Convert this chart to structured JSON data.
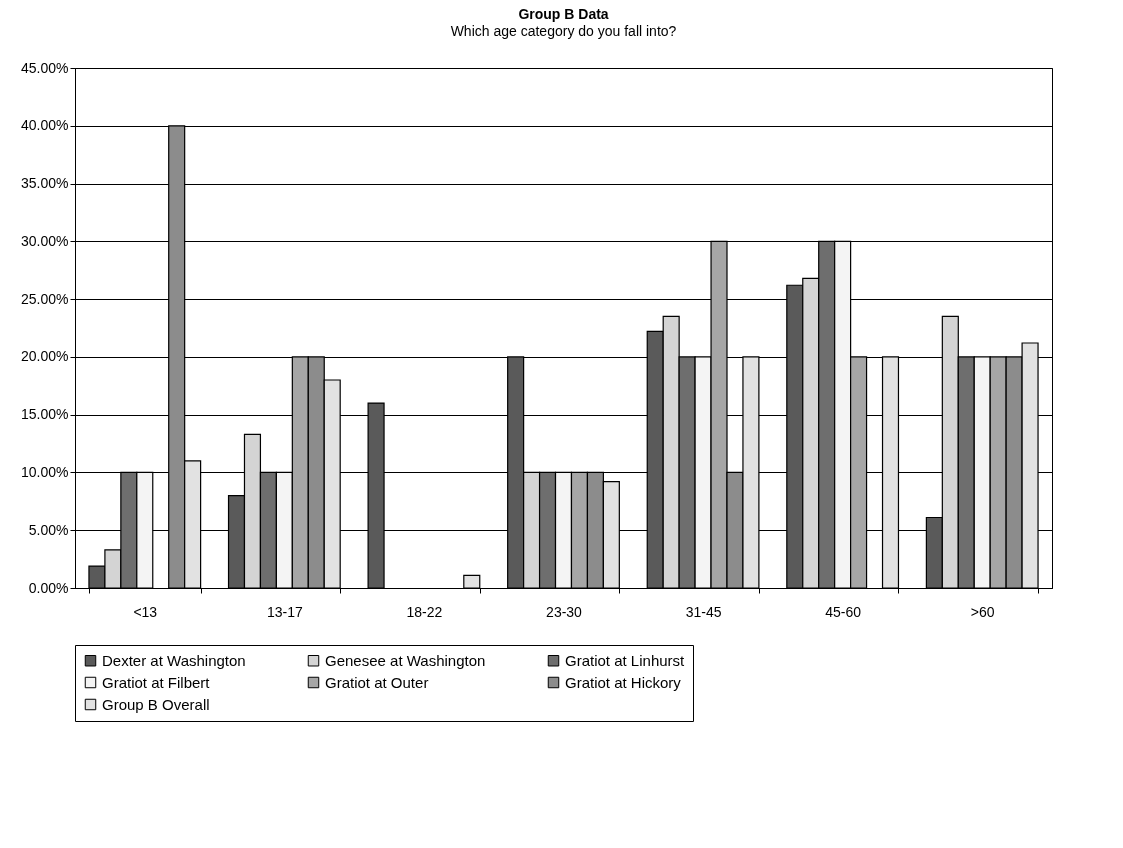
{
  "chart_data": {
    "type": "bar",
    "title": "Group B Data",
    "subtitle": "Which age category do you fall into?",
    "categories": [
      "<13",
      "13-17",
      "18-22",
      "23-30",
      "31-45",
      "45-60",
      ">60"
    ],
    "series": [
      {
        "name": "Dexter at Washington",
        "color": "#5a5a5a",
        "values": [
          1.9,
          8,
          16,
          20,
          22.2,
          26.2,
          6.1
        ]
      },
      {
        "name": "Genesee at Washington",
        "color": "#d4d4d4",
        "values": [
          3.3,
          13.3,
          0,
          10,
          23.5,
          26.8,
          23.5
        ]
      },
      {
        "name": "Gratiot at Linhurst",
        "color": "#6e6e6e",
        "values": [
          10,
          10,
          0,
          10,
          20,
          30,
          20
        ]
      },
      {
        "name": "Gratiot at Filbert",
        "color": "#f4f4f4",
        "values": [
          10,
          10,
          0,
          10,
          20,
          30,
          20
        ]
      },
      {
        "name": "Gratiot at Outer",
        "color": "#a6a6a6",
        "values": [
          0,
          20,
          0,
          10,
          30,
          20,
          20
        ]
      },
      {
        "name": "Gratiot at Hickory",
        "color": "#8c8c8c",
        "values": [
          40,
          20,
          0,
          10,
          10,
          0,
          20
        ]
      },
      {
        "name": "Group B Overall",
        "color": "#e2e2e2",
        "values": [
          11,
          18,
          1.1,
          9.2,
          20,
          20,
          21.2
        ]
      }
    ],
    "ylim": [
      0,
      45
    ],
    "yticks": [
      {
        "value": 0,
        "label": "0.00%"
      },
      {
        "value": 5,
        "label": "5.00%"
      },
      {
        "value": 10,
        "label": "10.00%"
      },
      {
        "value": 15,
        "label": "15.00%"
      },
      {
        "value": 20,
        "label": "20.00%"
      },
      {
        "value": 25,
        "label": "25.00%"
      },
      {
        "value": 30,
        "label": "30.00%"
      },
      {
        "value": 35,
        "label": "35.00%"
      },
      {
        "value": 40,
        "label": "40.00%"
      },
      {
        "value": 45,
        "label": "45.00%"
      }
    ],
    "grid": "y",
    "legend": "bottom"
  }
}
